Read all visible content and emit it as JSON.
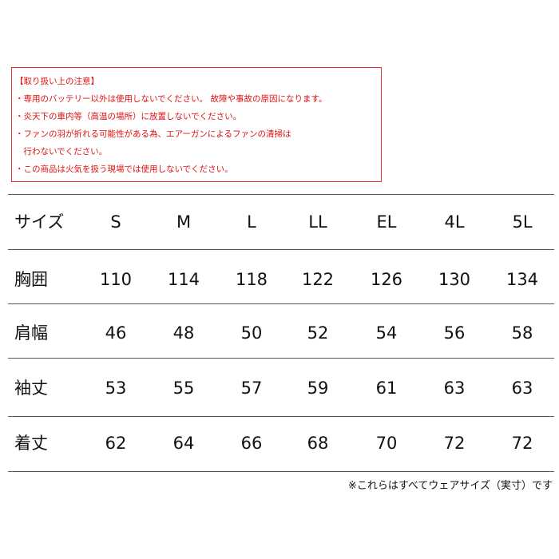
{
  "notice": {
    "title": "【取り扱い上の注意】",
    "lines": [
      "・専用のバッテリー以外は使用しないでください。 故障や事故の原因になります。",
      "・炎天下の車内等（高温の場所）に放置しないでください。",
      "・ファンの羽が折れる可能性がある為、エアーガンによるファンの清掃は",
      "　行わないでください。",
      "・この商品は火気を扱う現場では使用しないでください。"
    ]
  },
  "table": {
    "header": [
      "サイズ",
      "S",
      "M",
      "L",
      "LL",
      "EL",
      "4L",
      "5L"
    ],
    "rows": [
      [
        "胸囲",
        110,
        114,
        118,
        122,
        126,
        130,
        134
      ],
      [
        "肩幅",
        46,
        48,
        50,
        52,
        54,
        56,
        58
      ],
      [
        "袖丈",
        53,
        55,
        57,
        59,
        61,
        63,
        63
      ],
      [
        "着丈",
        62,
        64,
        66,
        68,
        70,
        72,
        72
      ]
    ]
  },
  "footnote": "※これらはすべてウェアサイズ（実寸）です"
}
